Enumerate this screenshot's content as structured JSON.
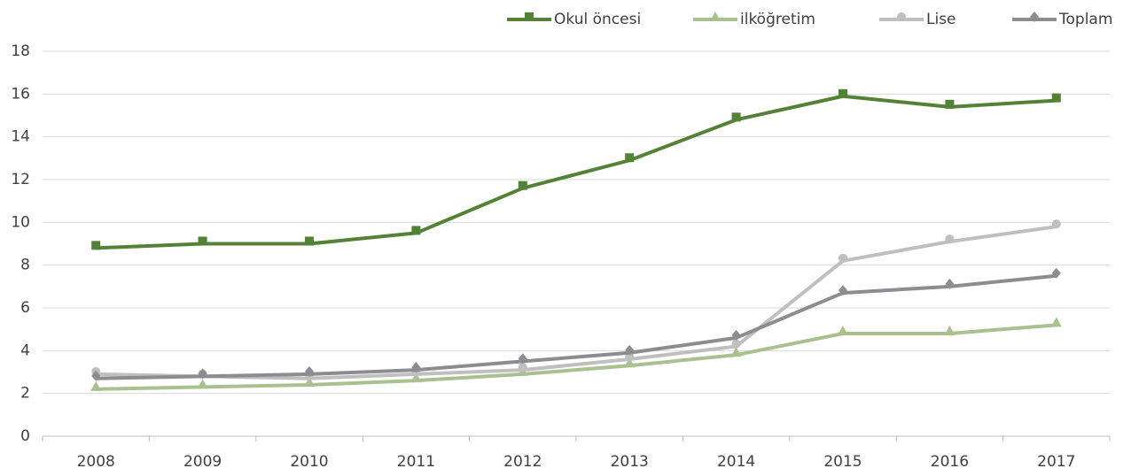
{
  "chart_data": {
    "type": "line",
    "categories": [
      "2008",
      "2009",
      "2010",
      "2011",
      "2012",
      "2013",
      "2014",
      "2015",
      "2016",
      "2017"
    ],
    "series": [
      {
        "name": "Okul öncesi",
        "color": "#538135",
        "marker": "square",
        "values": [
          8.8,
          9.0,
          9.0,
          9.5,
          11.6,
          12.9,
          14.8,
          15.9,
          15.4,
          15.7
        ]
      },
      {
        "name": "ilköğretim",
        "color": "#a9c08f",
        "marker": "triangle",
        "values": [
          2.2,
          2.3,
          2.4,
          2.6,
          2.9,
          3.3,
          3.8,
          4.8,
          4.8,
          5.2
        ]
      },
      {
        "name": "Lise",
        "color": "#bfbfbf",
        "marker": "circle",
        "values": [
          2.9,
          2.8,
          2.7,
          2.9,
          3.1,
          3.6,
          4.2,
          8.2,
          9.1,
          9.8
        ]
      },
      {
        "name": "Toplam",
        "color": "#8c8c91",
        "marker": "diamond",
        "values": [
          2.7,
          2.8,
          2.9,
          3.1,
          3.5,
          3.9,
          4.6,
          6.7,
          7.0,
          7.5
        ]
      }
    ],
    "ylim": [
      0,
      18
    ],
    "yticks": [
      0,
      2,
      4,
      6,
      8,
      10,
      12,
      14,
      16,
      18
    ],
    "grid": true,
    "legend": "top-right"
  }
}
